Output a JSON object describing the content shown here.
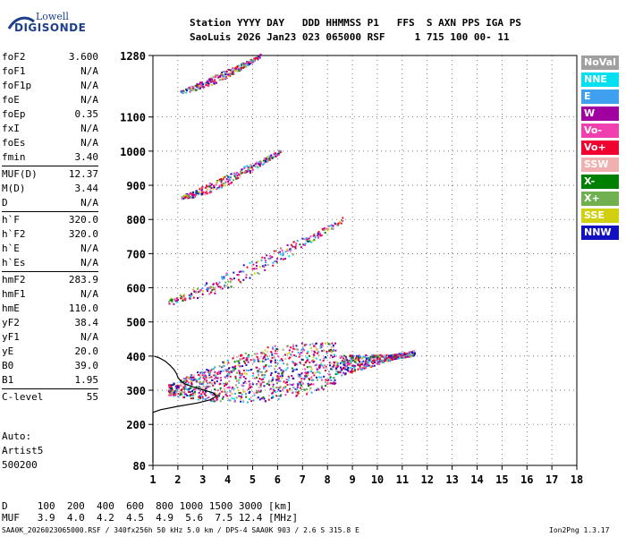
{
  "logo": {
    "line1": "Lowell",
    "line2": "DIGISONDE"
  },
  "header": {
    "line1": "Station YYYY DAY   DDD HHMMSS P1   FFS  S AXN PPS IGA PS",
    "line2": "SaoLuis 2026 Jan23 023 065000 RSF     1 715 100 00- 11"
  },
  "params": {
    "group1": [
      {
        "k": "foF2",
        "v": "3.600"
      },
      {
        "k": "foF1",
        "v": "N/A"
      },
      {
        "k": "foF1p",
        "v": "N/A"
      },
      {
        "k": "foE",
        "v": "N/A"
      },
      {
        "k": "foEp",
        "v": "0.35"
      },
      {
        "k": "fxI",
        "v": "N/A"
      },
      {
        "k": "foEs",
        "v": "N/A"
      },
      {
        "k": "fmin",
        "v": "3.40"
      }
    ],
    "group2": [
      {
        "k": "MUF(D)",
        "v": "12.37"
      },
      {
        "k": "M(D)",
        "v": "3.44"
      },
      {
        "k": "D",
        "v": "N/A"
      }
    ],
    "group3": [
      {
        "k": "h`F",
        "v": "320.0"
      },
      {
        "k": "h`F2",
        "v": "320.0"
      },
      {
        "k": "h`E",
        "v": "N/A"
      },
      {
        "k": "h`Es",
        "v": "N/A"
      }
    ],
    "group4": [
      {
        "k": "hmF2",
        "v": "283.9"
      },
      {
        "k": "hmF1",
        "v": "N/A"
      },
      {
        "k": "hmE",
        "v": "110.0"
      },
      {
        "k": "yF2",
        "v": "38.4"
      },
      {
        "k": "yF1",
        "v": "N/A"
      },
      {
        "k": "yE",
        "v": "20.0"
      },
      {
        "k": "B0",
        "v": "39.0"
      },
      {
        "k": "B1",
        "v": "1.95"
      }
    ],
    "group5": [
      {
        "k": "C-level",
        "v": "55"
      }
    ]
  },
  "auto": {
    "line1": "Auto:",
    "line2": "Artist5",
    "line3": "500200"
  },
  "legend": [
    {
      "label": "NoVal",
      "color": "#a0a0a0"
    },
    {
      "label": "NNE",
      "color": "#00e0f0"
    },
    {
      "label": "E",
      "color": "#40a0f0"
    },
    {
      "label": "W",
      "color": "#a000a0"
    },
    {
      "label": "Vo-",
      "color": "#f040b0"
    },
    {
      "label": "Vo+",
      "color": "#f00030"
    },
    {
      "label": "SSW",
      "color": "#f0b0b0"
    },
    {
      "label": "X-",
      "color": "#008000"
    },
    {
      "label": "X+",
      "color": "#70b050"
    },
    {
      "label": "SSE",
      "color": "#d0d010"
    },
    {
      "label": "NNW",
      "color": "#1010c0"
    }
  ],
  "muf_table": {
    "d_row": "D     100  200  400  600  800 1000 1500 3000 [km]",
    "muf_row": "MUF   3.9  4.0  4.2  4.5  4.9  5.6  7.5 12.4 [MHz]"
  },
  "footer": {
    "left": "SAA0K_2026023065000.RSF / 340fx256h 50 kHz 5.0 km / DPS-4 SAA0K 903 / 2.6 S 315.8 E",
    "right": "Ion2Png 1.3.17"
  },
  "chart_data": {
    "type": "scatter",
    "xlim": [
      1,
      18
    ],
    "ylim": [
      80,
      1280
    ],
    "x_ticks": [
      "1",
      "2",
      "3",
      "4",
      "5",
      "6",
      "7",
      "8",
      "9",
      "10",
      "11",
      "12",
      "13",
      "14",
      "15",
      "16",
      "17",
      "18"
    ],
    "y_ticks": [
      {
        "value": 80,
        "label": "80"
      },
      {
        "value": 200,
        "label": "200"
      },
      {
        "value": 300,
        "label": "300"
      },
      {
        "value": 400,
        "label": "400"
      },
      {
        "value": 500,
        "label": "500"
      },
      {
        "value": 600,
        "label": "600"
      },
      {
        "value": 700,
        "label": "700"
      },
      {
        "value": 800,
        "label": "800"
      },
      {
        "value": 900,
        "label": "900"
      },
      {
        "value": 1000,
        "label": "1000"
      },
      {
        "value": 1100,
        "label": "1100"
      },
      {
        "value": 1280,
        "label": "1280"
      }
    ],
    "grid": "dotted",
    "traces": [
      {
        "name": "F-trace 1st hop",
        "f_start": 1.6,
        "f_end": 11.5,
        "h_start": 300,
        "h_end": 410,
        "spread": [
          15,
          80
        ]
      },
      {
        "name": "F-trace 2nd hop",
        "f_start": 1.6,
        "f_end": 8.6,
        "h_start": 560,
        "h_end": 800,
        "spread": [
          8,
          25
        ]
      },
      {
        "name": "F-trace 3rd hop",
        "f_start": 2.1,
        "f_end": 6.1,
        "h_start": 865,
        "h_end": 1000,
        "spread": [
          6,
          15
        ]
      },
      {
        "name": "F-trace 4th hop",
        "f_start": 2.1,
        "f_end": 5.3,
        "h_start": 1175,
        "h_end": 1280,
        "spread": [
          5,
          12
        ]
      }
    ],
    "profile": [
      [
        1.0,
        88
      ],
      [
        1.0,
        235
      ],
      [
        1.3,
        243
      ],
      [
        2.0,
        253
      ],
      [
        2.8,
        263
      ],
      [
        3.3,
        272
      ],
      [
        3.55,
        283
      ],
      [
        3.4,
        293
      ],
      [
        3.0,
        301
      ],
      [
        2.6,
        310
      ],
      [
        2.3,
        318
      ],
      [
        2.1,
        328
      ],
      [
        2.0,
        338
      ],
      [
        1.95,
        348
      ],
      [
        1.85,
        360
      ],
      [
        1.7,
        372
      ],
      [
        1.5,
        385
      ],
      [
        1.25,
        395
      ],
      [
        1.05,
        400
      ]
    ]
  }
}
